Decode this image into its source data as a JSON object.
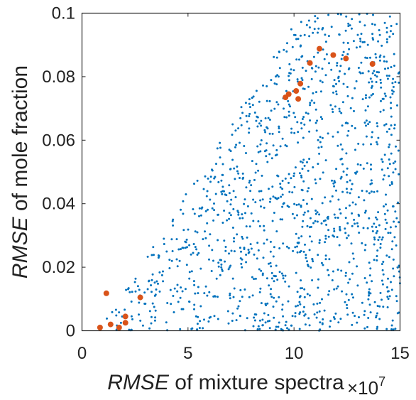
{
  "chart_data": {
    "type": "scatter",
    "xlabel": {
      "italic": "RMSE",
      "rest": " of mixture spectra"
    },
    "ylabel": {
      "italic": "RMSE",
      "rest": " of mole fraction"
    },
    "x_exponent": {
      "base": "×10",
      "power": "7"
    },
    "xlim": [
      0,
      15
    ],
    "ylim": [
      0,
      0.1
    ],
    "x_ticks": [
      0,
      5,
      10,
      15
    ],
    "x_tick_labels": [
      "0",
      "5",
      "10",
      "15"
    ],
    "y_ticks": [
      0,
      0.02,
      0.04,
      0.06,
      0.08,
      0.1
    ],
    "y_tick_labels": [
      "0",
      "0.02",
      "0.04",
      "0.06",
      "0.08",
      "0.1"
    ],
    "grid": false,
    "colors": {
      "background_points": "#0072bd",
      "highlight_points": "#d95319",
      "axis": "#262626"
    },
    "series": [
      {
        "marker": "small-dot",
        "color": "#0072bd",
        "sampled_points": {
          "count": 1300,
          "distribution": "uniform within a cone bounded by y <= 0.0105*(x-0.8), x in [0.8, 15], y in [0, 0.1]"
        }
      },
      {
        "marker": "filled-circle",
        "color": "#d95319",
        "points": [
          [
            0.85,
            0.001
          ],
          [
            1.15,
            0.0118
          ],
          [
            1.35,
            0.002
          ],
          [
            1.75,
            0.001
          ],
          [
            2.05,
            0.0045
          ],
          [
            2.05,
            0.0025
          ],
          [
            2.75,
            0.0105
          ],
          [
            9.6,
            0.0735
          ],
          [
            9.75,
            0.0745
          ],
          [
            10.1,
            0.0755
          ],
          [
            10.2,
            0.073
          ],
          [
            10.3,
            0.0778
          ],
          [
            10.75,
            0.0843
          ],
          [
            11.2,
            0.0888
          ],
          [
            11.85,
            0.0868
          ],
          [
            12.45,
            0.0857
          ],
          [
            13.7,
            0.084
          ]
        ]
      }
    ]
  }
}
